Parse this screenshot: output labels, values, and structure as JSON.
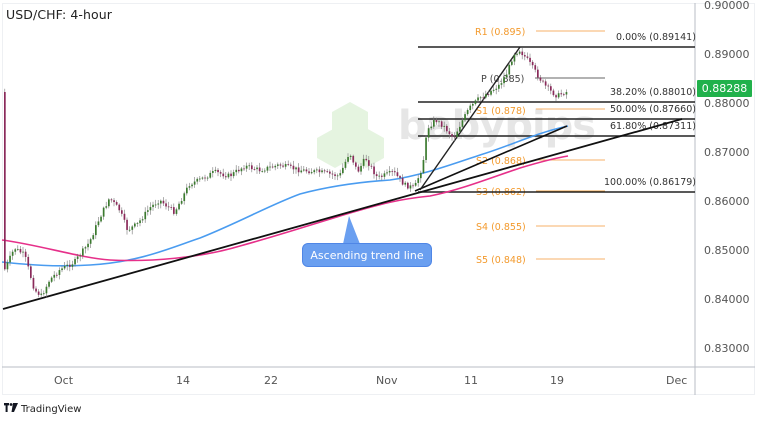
{
  "header": {
    "title": "USD/CHF: 4-hour"
  },
  "footer": {
    "brand_mark": "17",
    "brand_name": "TradingView"
  },
  "price_badge": {
    "value": "0.88288",
    "color": "#21b14b"
  },
  "watermark": {
    "text": "babypips"
  },
  "annotation": {
    "label": "Ascending trend line",
    "color": "#6a9ff0"
  },
  "chart_data": {
    "type": "candlestick",
    "title": "USD/CHF: 4-hour",
    "xlabel": "",
    "ylabel": "",
    "ylim": [
      0.825,
      0.9
    ],
    "x_ticks": [
      "Oct",
      "14",
      "22",
      "Nov",
      "11",
      "19",
      "Dec"
    ],
    "y_ticks": [
      "0.90000",
      "0.89000",
      "0.88000",
      "0.87000",
      "0.86000",
      "0.85000",
      "0.84000",
      "0.83000"
    ],
    "last_price": 0.88288,
    "grid": false,
    "pivot_levels": [
      {
        "label": "R1 (0.895)",
        "value": 0.895
      },
      {
        "label": "P (0.885)",
        "value": 0.885
      },
      {
        "label": "S1 (0.878)",
        "value": 0.878
      },
      {
        "label": "S2 (0.868)",
        "value": 0.868
      },
      {
        "label": "S3 (0.862)",
        "value": 0.862
      },
      {
        "label": "S4 (0.855)",
        "value": 0.855
      },
      {
        "label": "S5 (0.848)",
        "value": 0.848
      }
    ],
    "fibonacci_levels": [
      {
        "label": "0.00% (0.89141)",
        "value": 0.89141
      },
      {
        "label": "38.20% (0.88010)",
        "value": 0.8801
      },
      {
        "label": "50.00% (0.87660)",
        "value": 0.8766
      },
      {
        "label": "61.80% (0.87311)",
        "value": 0.87311
      },
      {
        "label": "100.00% (0.86179)",
        "value": 0.86179
      }
    ],
    "series": [
      {
        "name": "Blue moving average",
        "color": "#4a9cf0"
      },
      {
        "name": "Magenta moving average",
        "color": "#e6308a"
      },
      {
        "name": "Ascending trend line",
        "color": "#111111"
      }
    ],
    "approx_close_path": [
      {
        "x": "late Sep",
        "y": 0.848
      },
      {
        "x": "Oct",
        "y": 0.841
      },
      {
        "x": "Oct 10",
        "y": 0.858
      },
      {
        "x": "14",
        "y": 0.862
      },
      {
        "x": "22",
        "y": 0.866
      },
      {
        "x": "Oct 28",
        "y": 0.869
      },
      {
        "x": "Nov",
        "y": 0.8618
      },
      {
        "x": "Nov 6",
        "y": 0.876
      },
      {
        "x": "11",
        "y": 0.882
      },
      {
        "x": "Nov 14",
        "y": 0.8914
      },
      {
        "x": "19",
        "y": 0.8829
      }
    ]
  }
}
